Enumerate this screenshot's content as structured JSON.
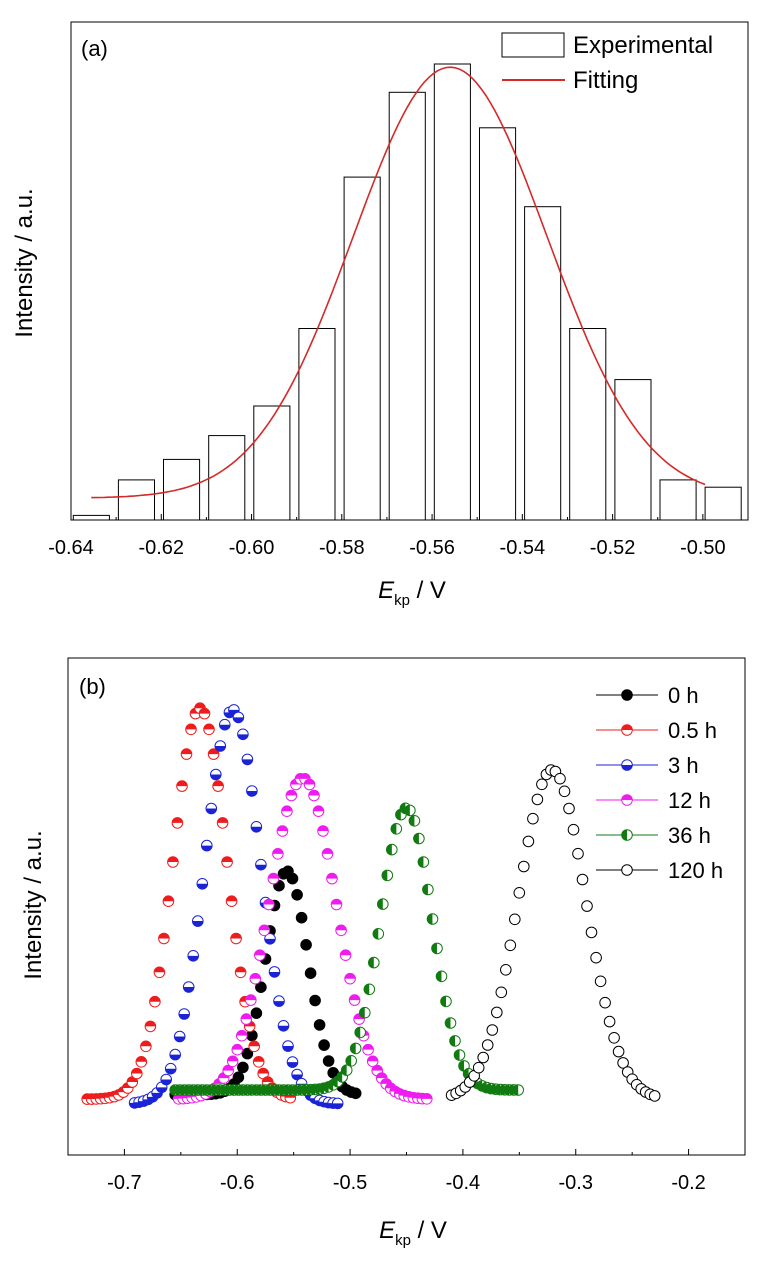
{
  "chart_data": [
    {
      "panel": "(a)",
      "type": "bar",
      "subtype": "histogram-with-fit",
      "xlabel_main": "E",
      "xlabel_sub": "kp",
      "xlabel_unit": " / V",
      "ylabel": "Intensity / a.u.",
      "xlim": [
        -0.64,
        -0.49
      ],
      "ylim": [
        0,
        1.0
      ],
      "xticks": [
        -0.64,
        -0.62,
        -0.6,
        -0.58,
        -0.56,
        -0.54,
        -0.52,
        -0.5
      ],
      "xtick_labels": [
        "-0.64",
        "-0.62",
        "-0.60",
        "-0.58",
        "-0.56",
        "-0.54",
        "-0.52",
        "-0.50"
      ],
      "yticks_shown": false,
      "legend_position": "top-right",
      "legend": [
        {
          "label": "Experimental",
          "marker": "box"
        },
        {
          "label": "Fitting",
          "marker": "line",
          "color": "#d42a2a"
        }
      ],
      "bins": [
        {
          "x0": -0.6395,
          "x1": -0.6315,
          "value": 0.01
        },
        {
          "x0": -0.6295,
          "x1": -0.6215,
          "value": 0.088
        },
        {
          "x0": -0.6195,
          "x1": -0.6115,
          "value": 0.133
        },
        {
          "x0": -0.6095,
          "x1": -0.6015,
          "value": 0.185
        },
        {
          "x0": -0.5995,
          "x1": -0.5915,
          "value": 0.25
        },
        {
          "x0": -0.5895,
          "x1": -0.5815,
          "value": 0.42
        },
        {
          "x0": -0.5795,
          "x1": -0.5715,
          "value": 0.752
        },
        {
          "x0": -0.5695,
          "x1": -0.5615,
          "value": 0.938
        },
        {
          "x0": -0.5595,
          "x1": -0.5515,
          "value": 1.0
        },
        {
          "x0": -0.5495,
          "x1": -0.5415,
          "value": 0.86
        },
        {
          "x0": -0.5395,
          "x1": -0.5315,
          "value": 0.687
        },
        {
          "x0": -0.5295,
          "x1": -0.5215,
          "value": 0.42
        },
        {
          "x0": -0.5195,
          "x1": -0.5115,
          "value": 0.308
        },
        {
          "x0": -0.5095,
          "x1": -0.5015,
          "value": 0.088
        },
        {
          "x0": -0.4995,
          "x1": -0.4915,
          "value": 0.072
        }
      ],
      "fit": {
        "model": "gaussian",
        "center": -0.556,
        "sigma": 0.0215,
        "amplitude": 0.945,
        "baseline": 0.048,
        "x_range": [
          -0.6355,
          -0.4995
        ],
        "color": "#d42a2a"
      }
    },
    {
      "panel": "(b)",
      "type": "scatter",
      "subtype": "gaussian-distributions",
      "xlabel_main": "E",
      "xlabel_sub": "kp",
      "xlabel_unit": " / V",
      "ylabel": "Intensity / a.u.",
      "xlim": [
        -0.75,
        -0.15
      ],
      "ylim": [
        0,
        1.0
      ],
      "xticks": [
        -0.7,
        -0.6,
        -0.5,
        -0.4,
        -0.3,
        -0.2
      ],
      "xtick_labels": [
        "-0.7",
        "-0.6",
        "-0.5",
        "-0.4",
        "-0.3",
        "-0.2"
      ],
      "yticks_shown": false,
      "legend_position": "top-right",
      "series": [
        {
          "name": "0 h",
          "color": "#000000",
          "fill": "full",
          "center": -0.556,
          "sigma": 0.019,
          "peak": 0.526,
          "x_range": [
            -0.655,
            -0.495
          ],
          "baseline": 0.04,
          "step": 0.004
        },
        {
          "name": "0.5 h",
          "color": "#ee1c1c",
          "fill": "top",
          "center": -0.633,
          "sigma": 0.024,
          "peak": 0.88,
          "x_range": [
            -0.733,
            -0.551
          ],
          "baseline": 0.03,
          "step": 0.004
        },
        {
          "name": "3 h",
          "color": "#1a23d6",
          "fill": "bottom",
          "center": -0.604,
          "sigma": 0.025,
          "peak": 0.877,
          "x_range": [
            -0.691,
            -0.508
          ],
          "baseline": 0.02,
          "step": 0.004
        },
        {
          "name": "12 h",
          "color": "#ee1cee",
          "fill": "top",
          "center": -0.542,
          "sigma": 0.03,
          "peak": 0.728,
          "x_range": [
            -0.652,
            -0.43
          ],
          "baseline": 0.03,
          "step": 0.004
        },
        {
          "name": "36 h",
          "color": "#117a11",
          "fill": "left",
          "center": -0.45,
          "sigma": 0.023,
          "peak": 0.663,
          "x_range": [
            -0.655,
            -0.348
          ],
          "baseline": 0.05,
          "step": 0.004
        },
        {
          "name": "120 h",
          "color": "#000000",
          "fill": "none",
          "center": -0.321,
          "sigma": 0.03,
          "peak": 0.746,
          "x_range": [
            -0.41,
            -0.23
          ],
          "baseline": 0.03,
          "step": 0.004
        }
      ]
    }
  ]
}
